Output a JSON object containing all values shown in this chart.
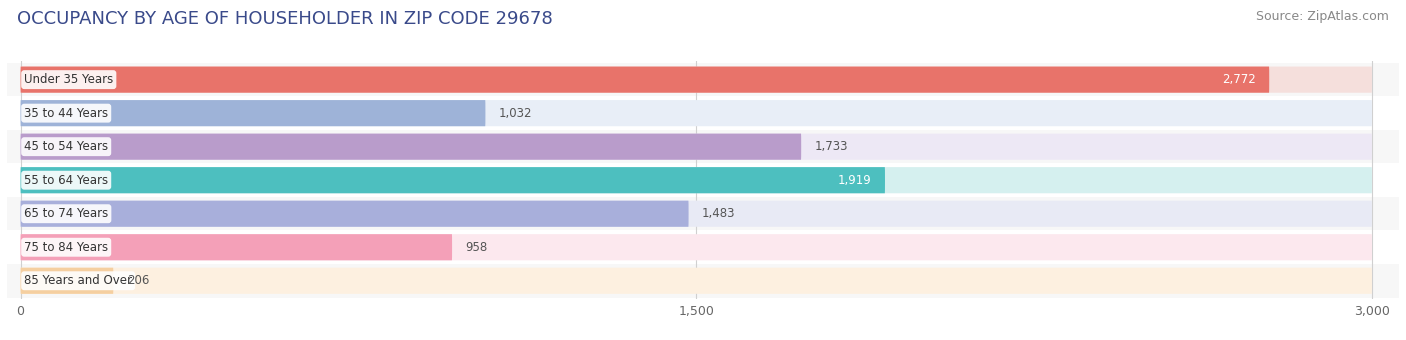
{
  "title": "OCCUPANCY BY AGE OF HOUSEHOLDER IN ZIP CODE 29678",
  "source": "Source: ZipAtlas.com",
  "categories": [
    "Under 35 Years",
    "35 to 44 Years",
    "45 to 54 Years",
    "55 to 64 Years",
    "65 to 74 Years",
    "75 to 84 Years",
    "85 Years and Over"
  ],
  "values": [
    2772,
    1032,
    1733,
    1919,
    1483,
    958,
    206
  ],
  "bar_colors": [
    "#E8736A",
    "#9EB3D8",
    "#B99CCB",
    "#4DBFBF",
    "#A8AFDB",
    "#F4A0B8",
    "#F5CFA0"
  ],
  "bar_bg_colors": [
    "#F5DFDC",
    "#E8EEF7",
    "#EDE8F5",
    "#D5F0EF",
    "#E8EAF5",
    "#FCE8EE",
    "#FDF0E0"
  ],
  "xlim": [
    0,
    3000
  ],
  "xticks": [
    0,
    1500,
    3000
  ],
  "background_color": "#ffffff",
  "row_bg_color": "#f0f0f0",
  "title_color": "#3a4a8a",
  "title_fontsize": 13,
  "source_fontsize": 9
}
